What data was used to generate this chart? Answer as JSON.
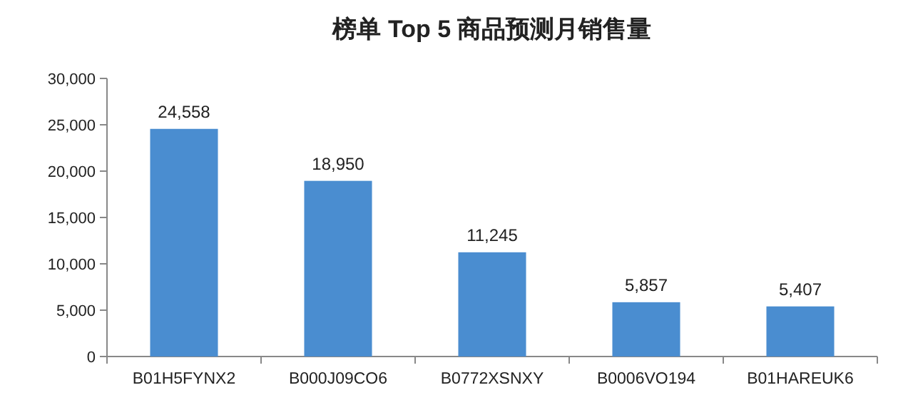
{
  "chart_data": {
    "type": "bar",
    "title": "榜单 Top 5 商品预测月销售量",
    "categories": [
      "B01H5FYNX2",
      "B000J09CO6",
      "B0772XSNXY",
      "B0006VO194",
      "B01HAREUK6"
    ],
    "values": [
      24558,
      18950,
      11245,
      5857,
      5407
    ],
    "value_labels": [
      "24,558",
      "18,950",
      "11,245",
      "5,857",
      "5,407"
    ],
    "color": "#4a8dd0",
    "ylim": [
      0,
      30000
    ],
    "yticks": [
      0,
      {
        "value": 5000,
        "label": "5,000"
      },
      {
        "value": 10000,
        "label": "10,000"
      },
      {
        "value": 15000,
        "label": "15,000"
      },
      {
        "value": 20000,
        "label": "20,000"
      },
      {
        "value": 25000,
        "label": "25,000"
      },
      {
        "value": 30000,
        "label": "30,000"
      }
    ]
  }
}
